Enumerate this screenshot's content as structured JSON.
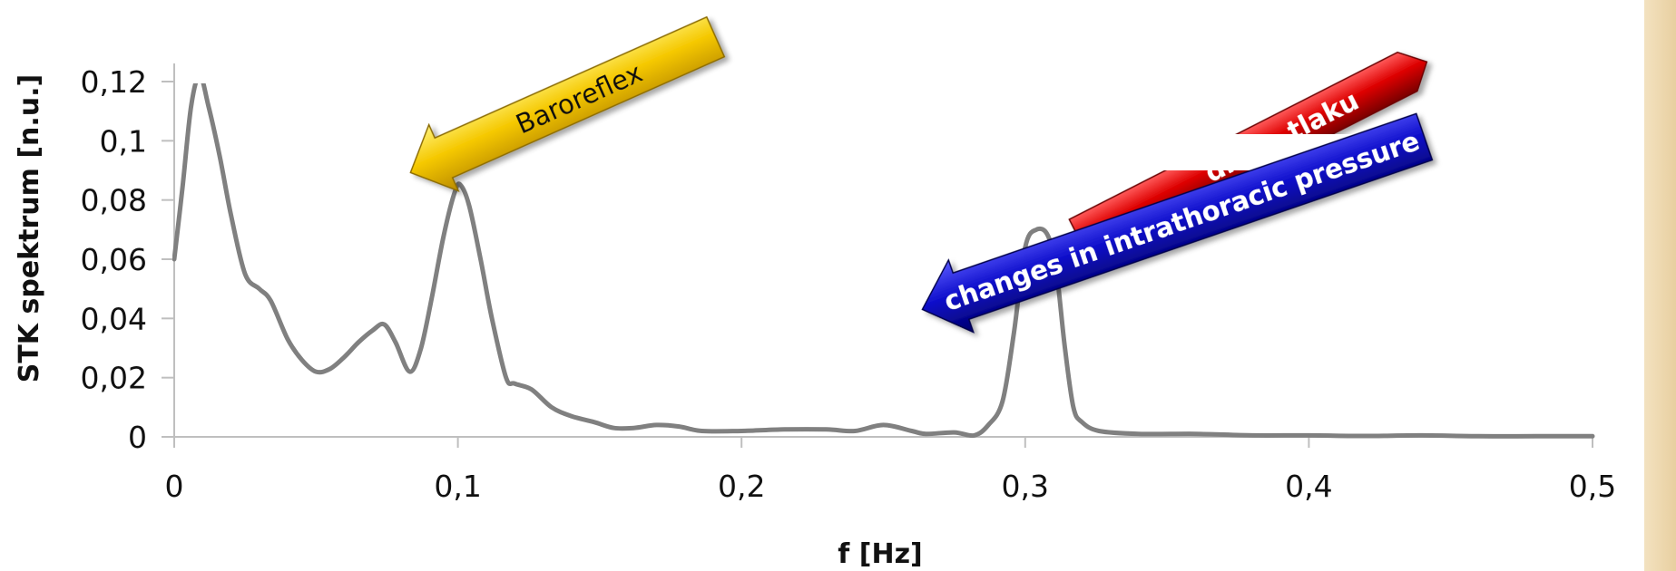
{
  "chart_data": {
    "type": "line",
    "xlabel": "f [Hz]",
    "ylabel": "STK spektrum [n.u.]",
    "xlim": [
      0,
      0.5
    ],
    "ylim": [
      0,
      0.12
    ],
    "x_ticks": [
      "0",
      "0,1",
      "0,2",
      "0,3",
      "0,4",
      "0,5"
    ],
    "y_ticks": [
      "0",
      "0,02",
      "0,04",
      "0,06",
      "0,08",
      "0,1",
      "0,12"
    ],
    "grid": false,
    "legend": "none",
    "series": [
      {
        "color": "#808080",
        "points": [
          [
            0,
            0.06
          ],
          [
            0.003,
            0.085
          ],
          [
            0.006,
            0.112
          ],
          [
            0.009,
            0.122
          ],
          [
            0.012,
            0.112
          ],
          [
            0.016,
            0.095
          ],
          [
            0.02,
            0.075
          ],
          [
            0.025,
            0.055
          ],
          [
            0.03,
            0.05
          ],
          [
            0.034,
            0.046
          ],
          [
            0.04,
            0.033
          ],
          [
            0.045,
            0.026
          ],
          [
            0.05,
            0.022
          ],
          [
            0.055,
            0.023
          ],
          [
            0.06,
            0.027
          ],
          [
            0.065,
            0.032
          ],
          [
            0.07,
            0.036
          ],
          [
            0.074,
            0.038
          ],
          [
            0.078,
            0.032
          ],
          [
            0.083,
            0.022
          ],
          [
            0.087,
            0.03
          ],
          [
            0.091,
            0.048
          ],
          [
            0.095,
            0.068
          ],
          [
            0.099,
            0.083
          ],
          [
            0.101,
            0.085
          ],
          [
            0.104,
            0.078
          ],
          [
            0.108,
            0.06
          ],
          [
            0.112,
            0.04
          ],
          [
            0.117,
            0.02
          ],
          [
            0.12,
            0.018
          ],
          [
            0.126,
            0.016
          ],
          [
            0.133,
            0.01
          ],
          [
            0.14,
            0.007
          ],
          [
            0.148,
            0.005
          ],
          [
            0.155,
            0.003
          ],
          [
            0.162,
            0.003
          ],
          [
            0.17,
            0.004
          ],
          [
            0.178,
            0.0035
          ],
          [
            0.186,
            0.002
          ],
          [
            0.2,
            0.002
          ],
          [
            0.215,
            0.0025
          ],
          [
            0.23,
            0.0025
          ],
          [
            0.24,
            0.002
          ],
          [
            0.25,
            0.004
          ],
          [
            0.26,
            0.002
          ],
          [
            0.265,
            0.001
          ],
          [
            0.275,
            0.0015
          ],
          [
            0.282,
            0.0005
          ],
          [
            0.287,
            0.004
          ],
          [
            0.292,
            0.012
          ],
          [
            0.296,
            0.035
          ],
          [
            0.3,
            0.064
          ],
          [
            0.304,
            0.07
          ],
          [
            0.308,
            0.068
          ],
          [
            0.311,
            0.056
          ],
          [
            0.314,
            0.03
          ],
          [
            0.317,
            0.01
          ],
          [
            0.32,
            0.005
          ],
          [
            0.326,
            0.002
          ],
          [
            0.34,
            0.001
          ],
          [
            0.36,
            0.001
          ],
          [
            0.38,
            0.0005
          ],
          [
            0.4,
            0.0005
          ],
          [
            0.42,
            0.0003
          ],
          [
            0.44,
            0.0005
          ],
          [
            0.46,
            0.0002
          ],
          [
            0.48,
            0.0002
          ],
          [
            0.5,
            0.0002
          ]
        ]
      }
    ],
    "annotations": [
      {
        "text": "Baroreflex",
        "color": "#f2c200",
        "text_color": "#111111",
        "points_to": [
          0.1,
          0.082
        ]
      },
      {
        "text": "changes in intrathoracic pressure",
        "color": "#0a0ab0",
        "text_color": "#ffffff",
        "points_to": [
          0.32,
          0.025
        ]
      },
      {
        "text": "dního  tlaku",
        "color": "#d80000",
        "text_color": "#ffffff"
      }
    ]
  }
}
